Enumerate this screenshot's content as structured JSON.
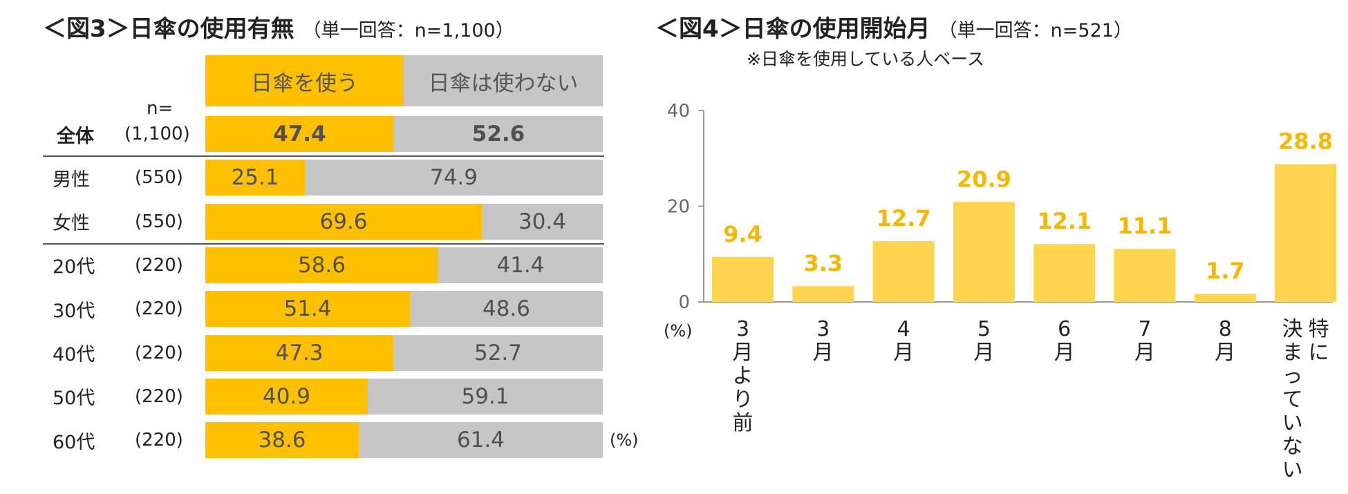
{
  "colors": {
    "use": "#FFC000",
    "not_use": "#C6C6C6",
    "bar4": "#FFD54F",
    "label4": "#F5B800",
    "axis": "#9A9A9A"
  },
  "fig3": {
    "title": "＜図3＞日傘の使用有無",
    "subtitle": "（単一回答：n=1,100）",
    "n_label": "n=",
    "unit": "(%)",
    "chart_data": {
      "type": "bar",
      "orientation": "horizontal-stacked-100",
      "series": [
        {
          "name": "日傘を使う"
        },
        {
          "name": "日傘は使わない"
        }
      ],
      "rows": [
        {
          "label": "全体",
          "n": "(1,100)",
          "values": [
            "47.4",
            "52.6"
          ]
        },
        {
          "label": "男性",
          "n": "(550)",
          "values": [
            "25.1",
            "74.9"
          ]
        },
        {
          "label": "女性",
          "n": "(550)",
          "values": [
            "69.6",
            "30.4"
          ]
        },
        {
          "label": "20代",
          "n": "(220)",
          "values": [
            "58.6",
            "41.4"
          ]
        },
        {
          "label": "30代",
          "n": "(220)",
          "values": [
            "51.4",
            "48.6"
          ]
        },
        {
          "label": "40代",
          "n": "(220)",
          "values": [
            "47.3",
            "52.7"
          ]
        },
        {
          "label": "50代",
          "n": "(220)",
          "values": [
            "40.9",
            "59.1"
          ]
        },
        {
          "label": "60代",
          "n": "(220)",
          "values": [
            "38.6",
            "61.4"
          ]
        }
      ]
    }
  },
  "fig4": {
    "title": "＜図4＞日傘の使用開始月",
    "subtitle": "（単一回答：n=521）",
    "note": "※日傘を使用している人ベース",
    "unit": "(%)",
    "chart_data": {
      "type": "bar",
      "categories": [
        "3月より前",
        "3月",
        "4月",
        "5月",
        "6月",
        "7月",
        "8月",
        "特に決まっていない"
      ],
      "category_lines": [
        [
          "3月より前"
        ],
        [
          "3月"
        ],
        [
          "4月"
        ],
        [
          "5月"
        ],
        [
          "6月"
        ],
        [
          "7月"
        ],
        [
          "8月"
        ],
        [
          "特に",
          "決まっていない"
        ]
      ],
      "values": [
        9.4,
        3.3,
        12.7,
        20.9,
        12.1,
        11.1,
        1.7,
        28.8
      ],
      "value_labels": [
        "9.4",
        "3.3",
        "12.7",
        "20.9",
        "12.1",
        "11.1",
        "1.7",
        "28.8"
      ],
      "ylim": [
        0,
        40
      ],
      "yticks": [
        "0",
        "20",
        "40"
      ],
      "grid": false
    }
  }
}
